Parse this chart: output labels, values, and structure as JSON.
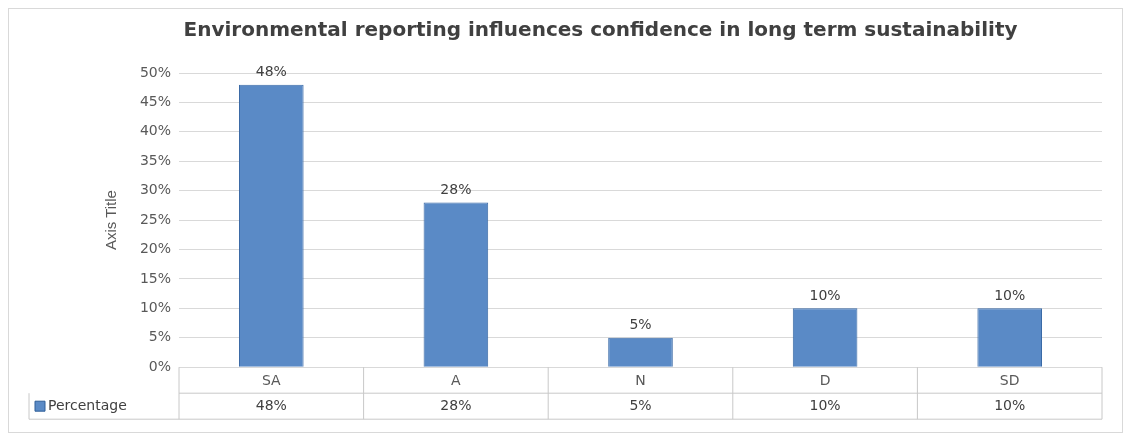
{
  "chart_data": {
    "type": "bar",
    "title": "Environmental reporting influences confidence in long term sustainability",
    "ylabel": "Axis Title",
    "categories": [
      "SA",
      "A",
      "N",
      "D",
      "SD"
    ],
    "series": [
      {
        "name": "Percentage",
        "color": "#5a8ac6",
        "values": [
          48,
          28,
          5,
          10,
          10
        ],
        "value_labels": [
          "48%",
          "28%",
          "5%",
          "10%",
          "10%"
        ]
      }
    ],
    "ylim": [
      0,
      50
    ],
    "yticks": [
      {
        "value": 0,
        "label": "0%"
      },
      {
        "value": 5,
        "label": "5%"
      },
      {
        "value": 10,
        "label": "10%"
      },
      {
        "value": 15,
        "label": "15%"
      },
      {
        "value": 20,
        "label": "20%"
      },
      {
        "value": 25,
        "label": "25%"
      },
      {
        "value": 30,
        "label": "30%"
      },
      {
        "value": 35,
        "label": "35%"
      },
      {
        "value": 40,
        "label": "40%"
      },
      {
        "value": 45,
        "label": "45%"
      },
      {
        "value": 50,
        "label": "50%"
      }
    ],
    "grid": "y",
    "legend": "bottom"
  }
}
